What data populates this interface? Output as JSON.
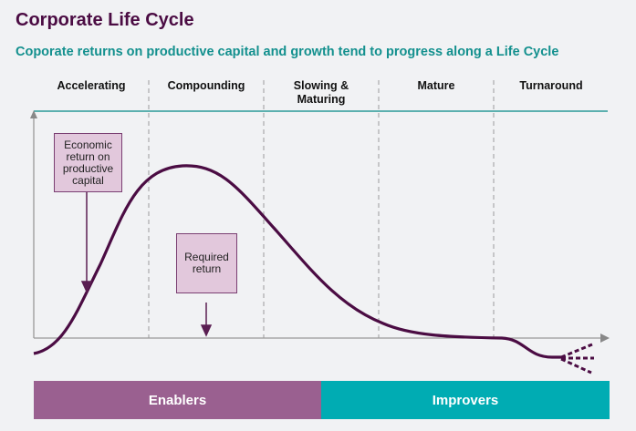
{
  "title": "Corporate Life Cycle",
  "subtitle": "Coporate returns on productive capital and growth tend to progress along a Life Cycle",
  "stages": [
    "Accelerating",
    "Compounding",
    "Slowing & Maturing",
    "Mature",
    "Turnaround"
  ],
  "labels": {
    "economic_return": "Economic return on productive capital",
    "required_return": "Required return"
  },
  "bars": {
    "enablers": "Enablers",
    "improvers": "Improvers"
  },
  "colors": {
    "curve": "#4b0c43",
    "teal": "#13908e",
    "enablers": "#9a6090",
    "improvers": "#00acb3"
  }
}
